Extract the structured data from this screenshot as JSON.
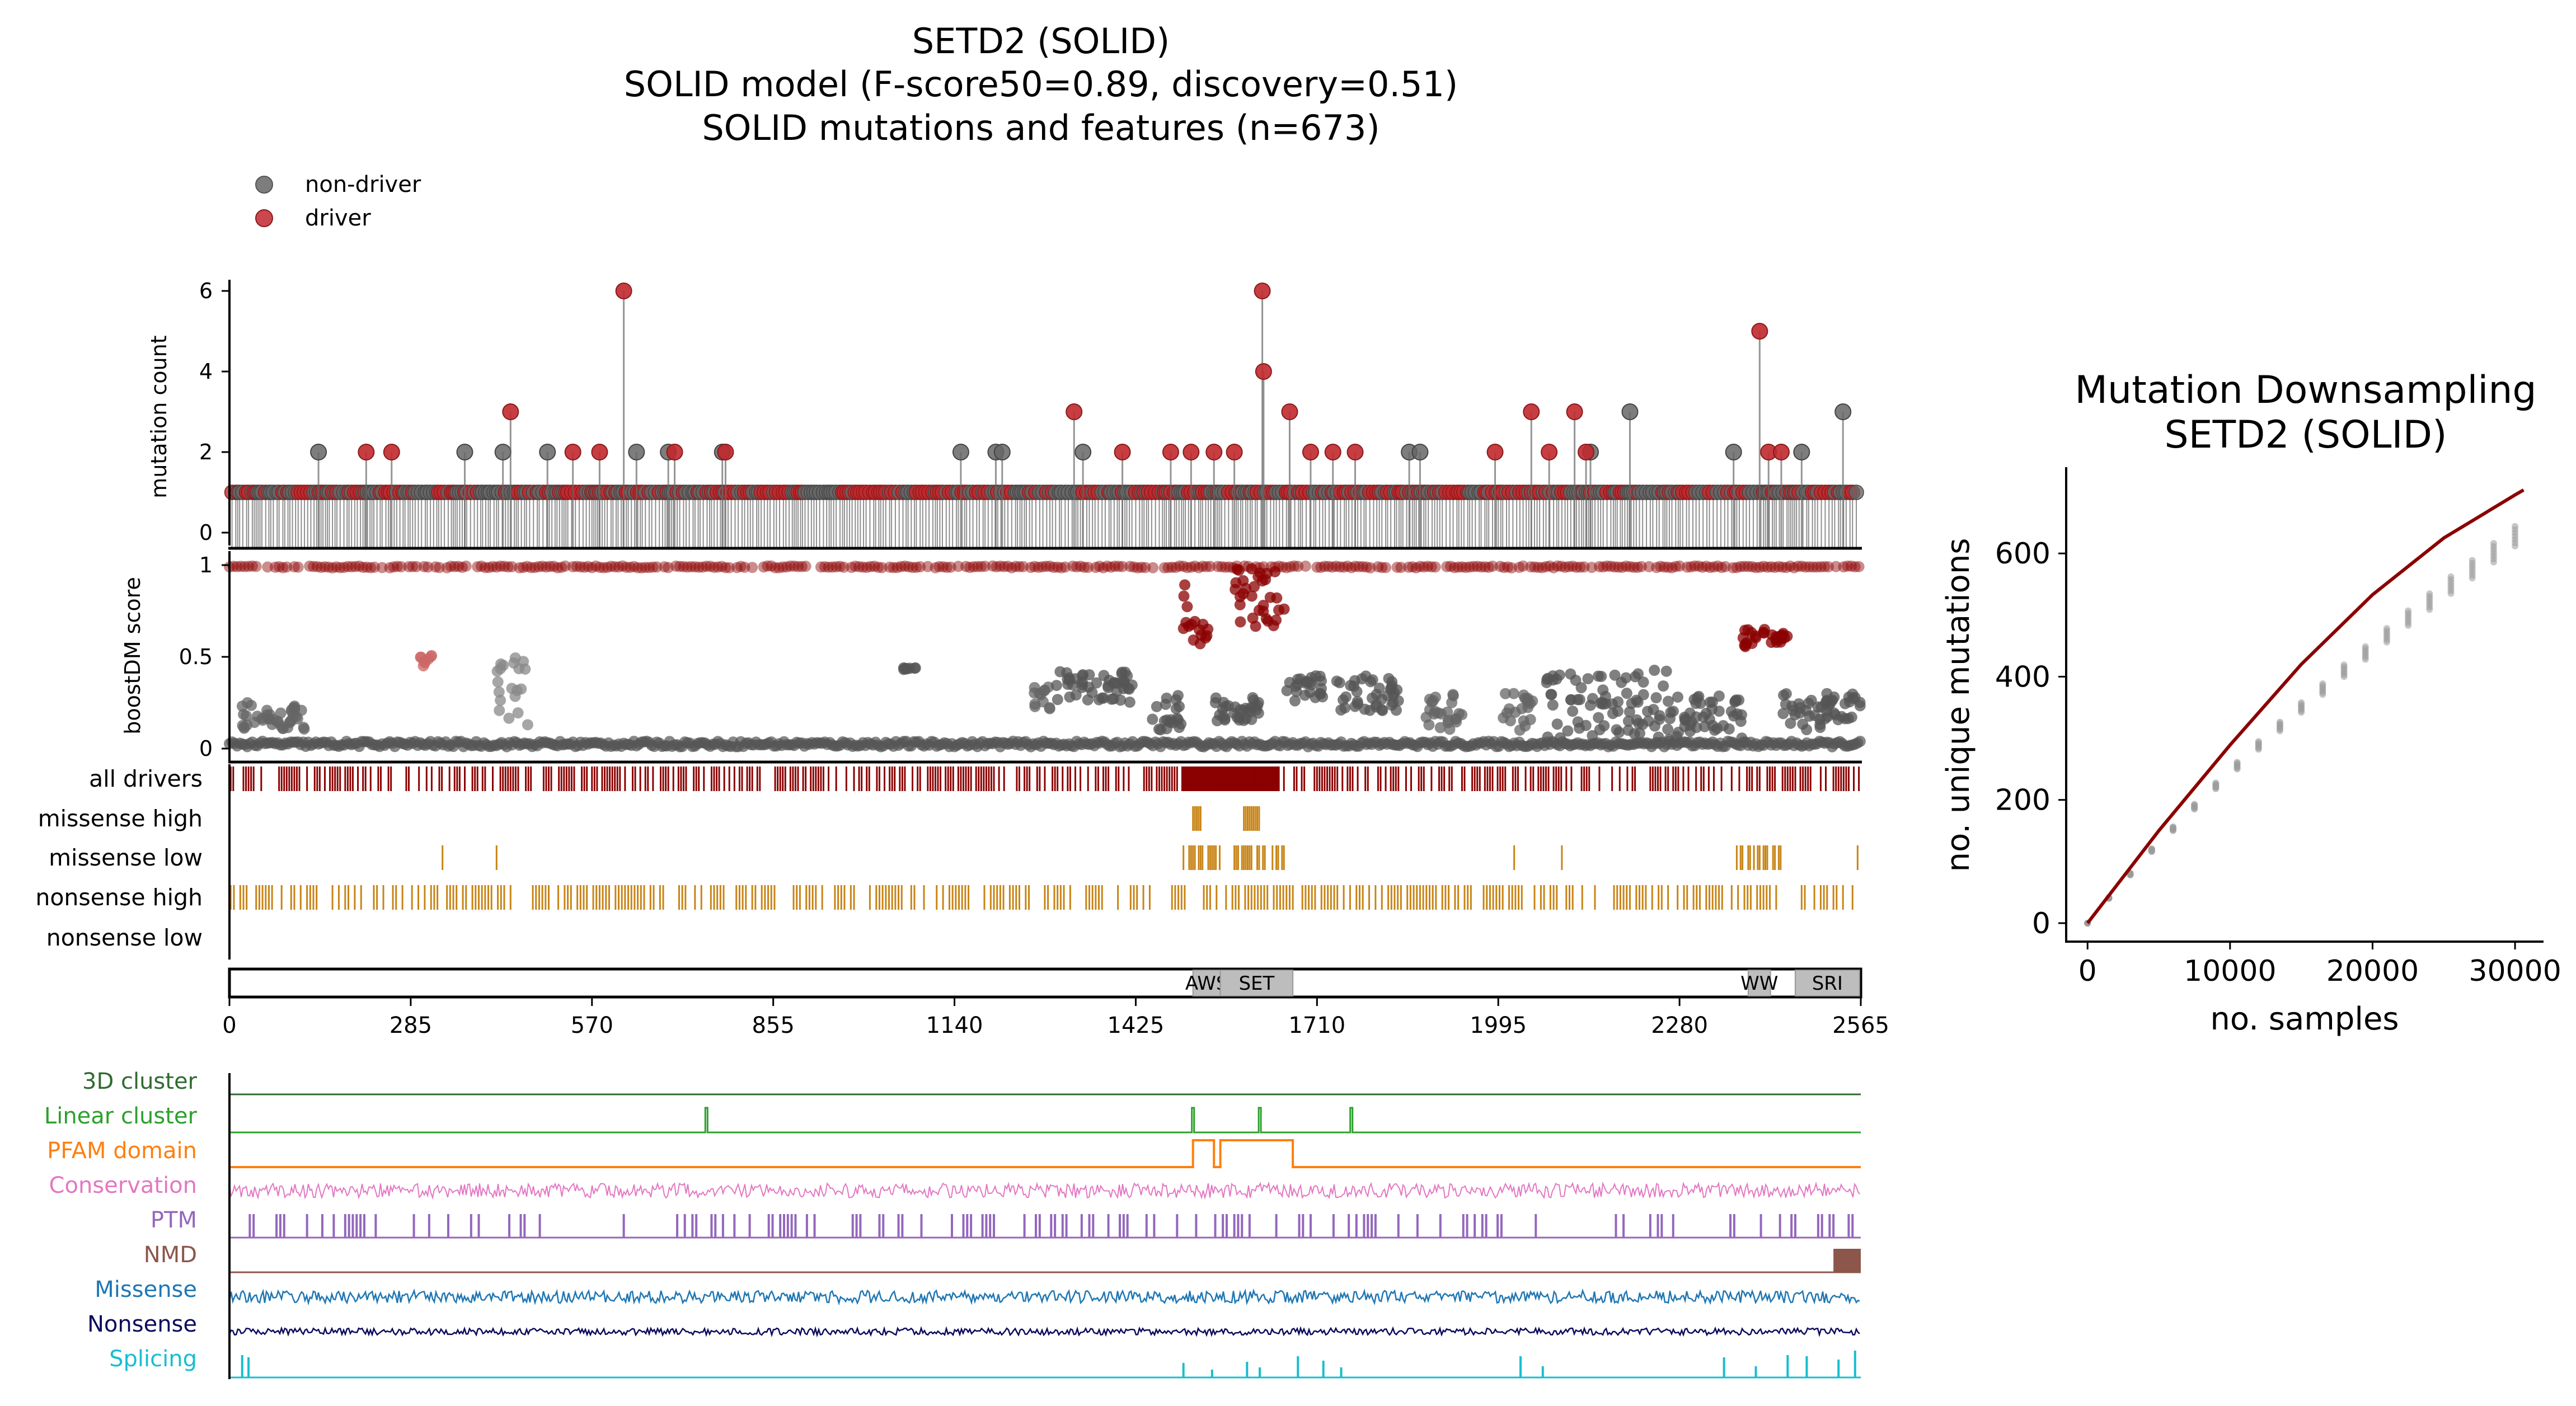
{
  "figure": {
    "title_lines": [
      "SETD2 (SOLID)",
      "SOLID model (F-score50=0.89, discovery=0.51)",
      "SOLID mutations and features (n=673)"
    ]
  },
  "legend": {
    "items": [
      {
        "label": "non-driver",
        "color": "#666666"
      },
      {
        "label": "driver",
        "color": "#c0282e"
      }
    ]
  },
  "colors": {
    "driver": "#c0282e",
    "nondriver": "#666666",
    "dark_red": "#8b0000",
    "orange_track": "#c88416",
    "curve": "#8b0000",
    "grey_points": "#9a9a9a"
  },
  "chart_data": [
    {
      "type": "scatter",
      "name": "needle-plot",
      "ylabel": "mutation count",
      "xlim": [
        0,
        2565
      ],
      "ylim": [
        0,
        6.4
      ],
      "yticks": [
        0,
        2,
        4,
        6
      ],
      "drivers_high": [
        {
          "x": 620,
          "y": 6
        },
        {
          "x": 1624,
          "y": 6
        },
        {
          "x": 1626,
          "y": 4
        },
        {
          "x": 2406,
          "y": 5
        },
        {
          "x": 442,
          "y": 3
        },
        {
          "x": 1328,
          "y": 3
        },
        {
          "x": 1667,
          "y": 3
        },
        {
          "x": 2047,
          "y": 3
        },
        {
          "x": 2115,
          "y": 3
        },
        {
          "x": 2133,
          "y": 2
        },
        {
          "x": 215,
          "y": 2
        },
        {
          "x": 255,
          "y": 2
        },
        {
          "x": 540,
          "y": 2
        },
        {
          "x": 582,
          "y": 2
        },
        {
          "x": 700,
          "y": 2
        },
        {
          "x": 780,
          "y": 2
        },
        {
          "x": 1404,
          "y": 2
        },
        {
          "x": 1480,
          "y": 2
        },
        {
          "x": 1512,
          "y": 2
        },
        {
          "x": 1548,
          "y": 2
        },
        {
          "x": 1580,
          "y": 2
        },
        {
          "x": 1700,
          "y": 2
        },
        {
          "x": 1735,
          "y": 2
        },
        {
          "x": 1770,
          "y": 2
        },
        {
          "x": 1990,
          "y": 2
        },
        {
          "x": 2075,
          "y": 2
        },
        {
          "x": 2420,
          "y": 2
        },
        {
          "x": 2440,
          "y": 2
        }
      ],
      "nondrivers_high": [
        {
          "x": 2537,
          "y": 3
        },
        {
          "x": 2202,
          "y": 3
        },
        {
          "x": 140,
          "y": 2
        },
        {
          "x": 370,
          "y": 2
        },
        {
          "x": 430,
          "y": 2
        },
        {
          "x": 500,
          "y": 2
        },
        {
          "x": 640,
          "y": 2
        },
        {
          "x": 690,
          "y": 2
        },
        {
          "x": 775,
          "y": 2
        },
        {
          "x": 1150,
          "y": 2
        },
        {
          "x": 1205,
          "y": 2
        },
        {
          "x": 1215,
          "y": 2
        },
        {
          "x": 1342,
          "y": 2
        },
        {
          "x": 1855,
          "y": 2
        },
        {
          "x": 1872,
          "y": 2
        },
        {
          "x": 2140,
          "y": 2
        },
        {
          "x": 2365,
          "y": 2
        },
        {
          "x": 2472,
          "y": 2
        }
      ]
    },
    {
      "type": "scatter",
      "name": "boostdm-score",
      "ylabel": "boostDM score",
      "xlim": [
        0,
        2565
      ],
      "ylim": [
        0,
        1
      ],
      "yticks": [
        0,
        0.5,
        1
      ],
      "ytick_labels": [
        "0",
        "0.5",
        "1"
      ]
    },
    {
      "type": "table",
      "name": "consequence-tracks",
      "rows": [
        "all drivers",
        "missense high",
        "missense low",
        "nonsense high",
        "nonsense low"
      ]
    },
    {
      "type": "bar",
      "name": "domain-track",
      "domains": [
        {
          "label": "AWS",
          "start": 1515,
          "end": 1558
        },
        {
          "label": "SET",
          "start": 1558,
          "end": 1672
        },
        {
          "label": "WW",
          "start": 2388,
          "end": 2423
        },
        {
          "label": "SRI",
          "start": 2462,
          "end": 2563
        }
      ],
      "xticks": [
        0,
        285,
        570,
        855,
        1140,
        1425,
        1710,
        1995,
        2280,
        2565
      ],
      "xlim": [
        0,
        2565
      ]
    },
    {
      "type": "line",
      "name": "feature-tracks",
      "tracks": [
        {
          "label": "3D cluster",
          "color": "#2f6b31"
        },
        {
          "label": "Linear cluster",
          "color": "#2ca02c"
        },
        {
          "label": "PFAM domain",
          "color": "#ff7f0e"
        },
        {
          "label": "Conservation",
          "color": "#e377c2"
        },
        {
          "label": "PTM",
          "color": "#9467bd"
        },
        {
          "label": "NMD",
          "color": "#8c564b"
        },
        {
          "label": "Missense",
          "color": "#1f77b4"
        },
        {
          "label": "Nonsense",
          "color": "#0b0b5c"
        },
        {
          "label": "Splicing",
          "color": "#17becf"
        }
      ],
      "linear_cluster_peaks": [
        750,
        1515,
        1620,
        1764
      ]
    },
    {
      "type": "scatter",
      "name": "mutation-downsampling",
      "title_lines": [
        "Mutation Downsampling",
        "SETD2 (SOLID)"
      ],
      "xlabel": "no. samples",
      "ylabel": "no. unique mutations",
      "xlim": [
        -1500,
        32000
      ],
      "ylim": [
        -30,
        740
      ],
      "xticks": [
        0,
        10000,
        20000,
        30000
      ],
      "yticks": [
        0,
        200,
        400,
        600
      ],
      "curve": {
        "x": [
          0,
          5000,
          10000,
          15000,
          20000,
          25000,
          30000,
          30600
        ],
        "y": [
          0,
          150,
          289,
          420,
          533,
          625,
          695,
          703
        ]
      },
      "sample_points": {
        "x": [
          0,
          1500,
          3000,
          4500,
          6000,
          7500,
          9000,
          10500,
          12000,
          13500,
          15000,
          16500,
          18000,
          19500,
          21000,
          22500,
          24000,
          25500,
          27000,
          28500,
          30000
        ],
        "y": [
          0,
          40,
          78,
          116,
          150,
          185,
          218,
          250,
          282,
          312,
          342,
          371,
          400,
          428,
          456,
          483,
          509,
          535,
          560,
          586,
          612
        ]
      }
    }
  ]
}
